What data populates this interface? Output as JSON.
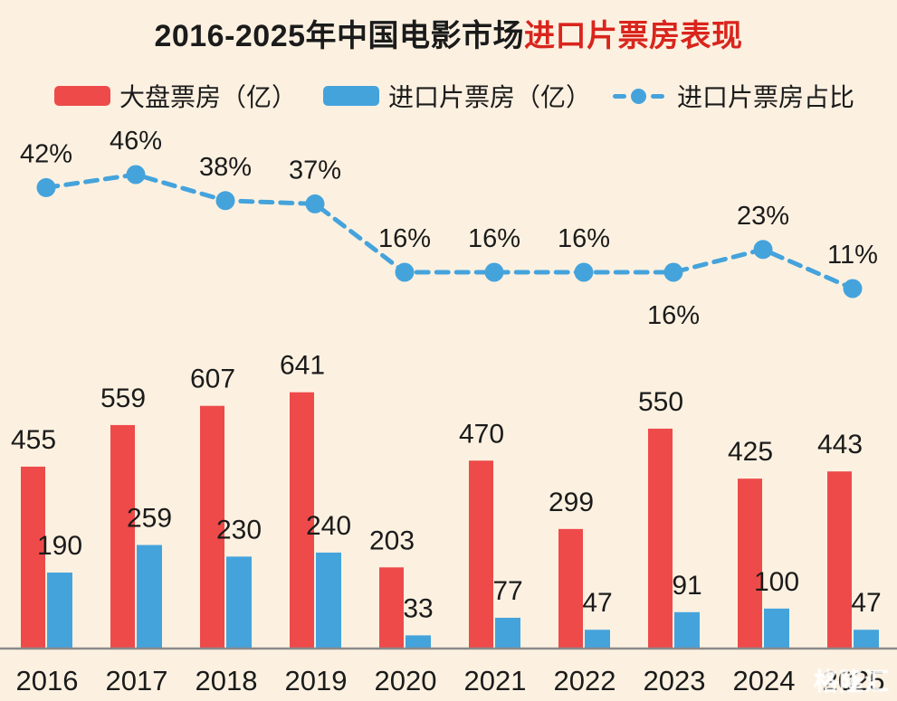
{
  "title": {
    "black": "2016-2025年中国电影市场",
    "red": "进口片票房表现"
  },
  "legend": {
    "items": [
      {
        "label": "大盘票房（亿）",
        "marker": "bar-swatch",
        "color": "#ee4a4a"
      },
      {
        "label": "进口片票房（亿）",
        "marker": "bar-swatch",
        "color": "#45a3dc"
      },
      {
        "label": "进口片票房占比",
        "marker": "dash-dot-line",
        "color": "#45a3dc"
      }
    ]
  },
  "watermark": {
    "text": "格隆汇"
  },
  "colors": {
    "background": "#fcf1e1",
    "gross_bar": "#ee4a4a",
    "import_bar": "#45a3dc",
    "line": "#45a3dc",
    "title_accent": "#d9251d",
    "label_text": "#1b1b1b",
    "axis": "#8a8a8a"
  },
  "chart_data": {
    "type": "bar",
    "title": "2016-2025年中国电影市场进口片票房表现",
    "categories": [
      "2016",
      "2017",
      "2018",
      "2019",
      "2020",
      "2021",
      "2022",
      "2023",
      "2024",
      "2025"
    ],
    "series": [
      {
        "name": "大盘票房（亿）",
        "type": "bar",
        "color": "#ee4a4a",
        "values": [
          455,
          559,
          607,
          641,
          203,
          470,
          299,
          550,
          425,
          443
        ]
      },
      {
        "name": "进口片票房（亿）",
        "type": "bar",
        "color": "#45a3dc",
        "values": [
          190,
          259,
          230,
          240,
          33,
          77,
          47,
          91,
          100,
          47
        ]
      },
      {
        "name": "进口片票房占比",
        "type": "line",
        "style": "dashed",
        "color": "#45a3dc",
        "unit": "%",
        "values": [
          42,
          46,
          38,
          37,
          16,
          16,
          16,
          16,
          23,
          11
        ],
        "labels": [
          "42%",
          "46%",
          "38%",
          "37%",
          "16%",
          "16%",
          "16%",
          "16%",
          "23%",
          "11%"
        ],
        "label_below_point": [
          false,
          false,
          false,
          false,
          false,
          false,
          false,
          true,
          false,
          false
        ]
      }
    ],
    "xlabel": "",
    "ylabel": "",
    "grid": false,
    "y_axis_shown": false,
    "legend_position": "top"
  }
}
